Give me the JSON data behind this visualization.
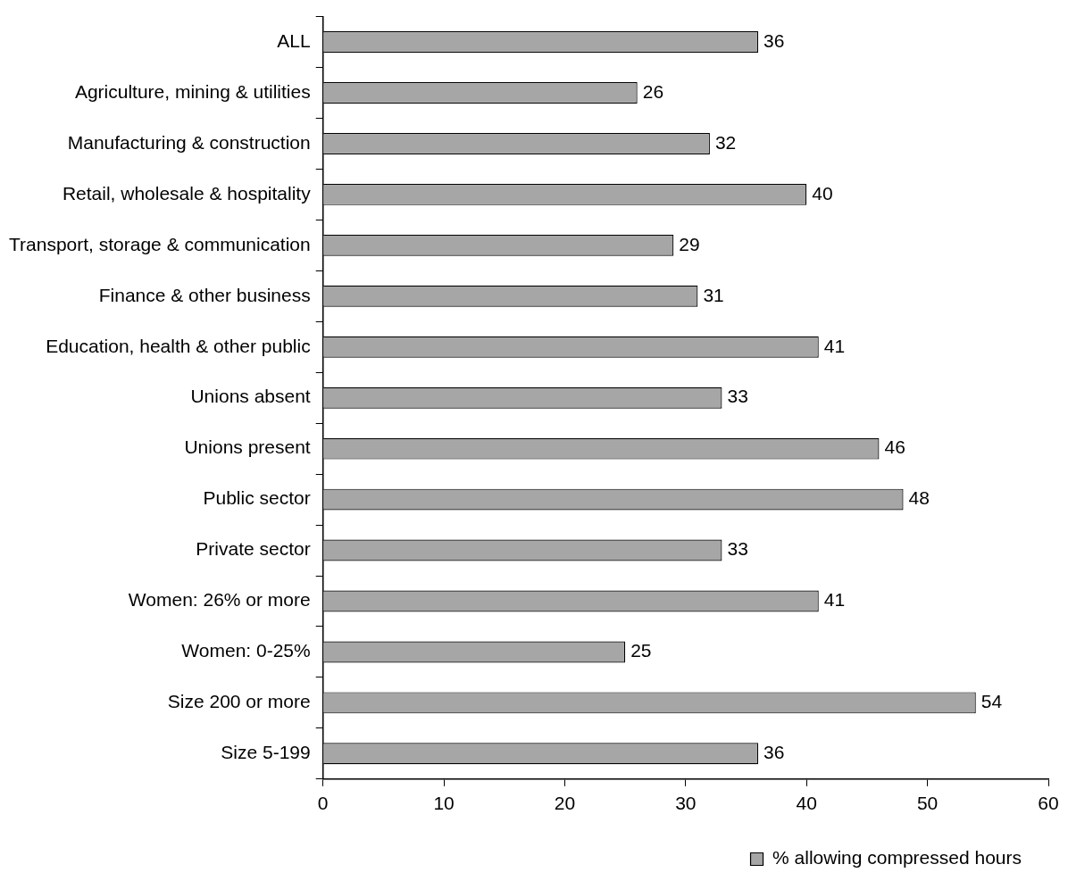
{
  "chart_data": {
    "type": "bar",
    "orientation": "horizontal",
    "categories": [
      "ALL",
      "Agriculture, mining & utilities",
      "Manufacturing & construction",
      "Retail, wholesale & hospitality",
      "Transport, storage & communication",
      "Finance & other business",
      "Education, health & other public",
      "Unions absent",
      "Unions present",
      "Public sector",
      "Private sector",
      "Women: 26% or more",
      "Women: 0-25%",
      "Size 200 or more",
      "Size 5-199"
    ],
    "series": [
      {
        "name": "% allowing compressed hours",
        "color": "#a6a6a6",
        "values": [
          36,
          26,
          32,
          40,
          29,
          31,
          41,
          33,
          46,
          48,
          33,
          41,
          25,
          54,
          36
        ]
      }
    ],
    "xlim": [
      0,
      60
    ],
    "xticks": [
      0,
      10,
      20,
      30,
      40,
      50,
      60
    ],
    "data_labels": true,
    "grid": false,
    "legend": "bottom"
  }
}
